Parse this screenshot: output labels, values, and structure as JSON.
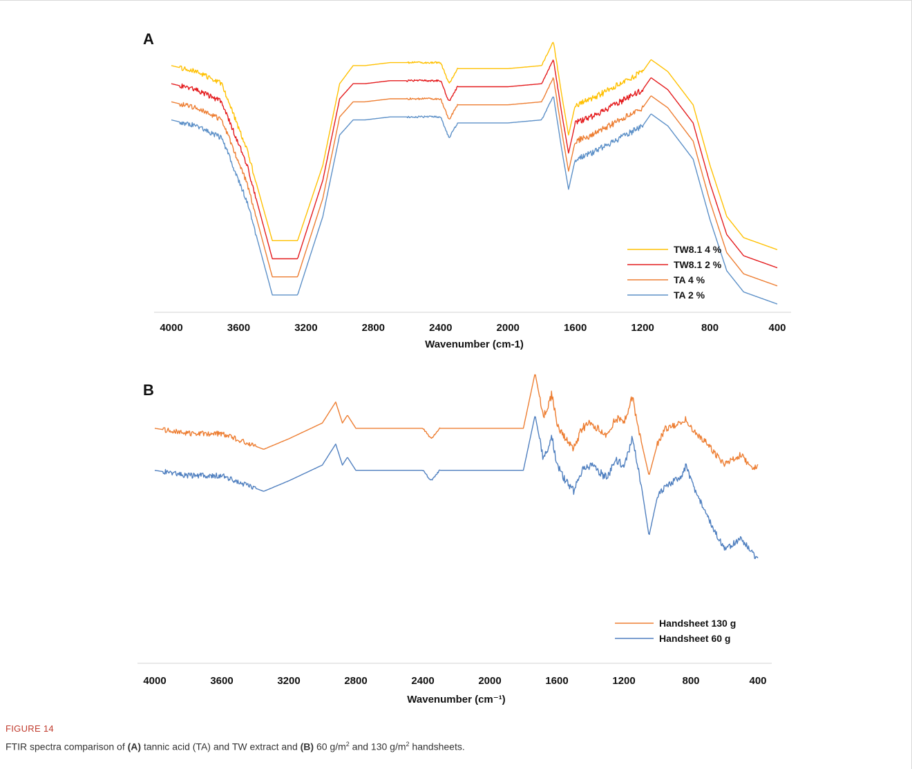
{
  "figure": {
    "label": "FIGURE 14",
    "caption_parts": [
      {
        "t": "FTIR spectra comparison of ",
        "b": false
      },
      {
        "t": "(A)",
        "b": true
      },
      {
        "t": " tannic acid (TA) and TW extract and ",
        "b": false
      },
      {
        "t": "(B)",
        "b": true
      },
      {
        "t": " 60 g/m",
        "b": false
      },
      {
        "t": "2",
        "b": false,
        "sup": true
      },
      {
        "t": " and 130 g/m",
        "b": false
      },
      {
        "t": "2",
        "b": false,
        "sup": true
      },
      {
        "t": " handsheets.",
        "b": false
      }
    ]
  },
  "chart_data": [
    {
      "panel": "A",
      "type": "line",
      "xlabel": "Wavenumber (cm-1)",
      "ylabel": "",
      "xlim": [
        4000,
        400
      ],
      "x_reversed": true,
      "xticks": [
        4000,
        3600,
        3200,
        2800,
        2400,
        2000,
        1600,
        1200,
        800,
        400
      ],
      "legend_position": "bottom-right",
      "series": [
        {
          "name": "TW8.1 4 %",
          "color": "#ffc000",
          "points": [
            [
              4000,
              88
            ],
            [
              3850,
              86
            ],
            [
              3700,
              82
            ],
            [
              3550,
              60
            ],
            [
              3400,
              30
            ],
            [
              3250,
              30
            ],
            [
              3100,
              55
            ],
            [
              3000,
              82
            ],
            [
              2920,
              88
            ],
            [
              2850,
              88
            ],
            [
              2700,
              89
            ],
            [
              2400,
              89
            ],
            [
              2350,
              82
            ],
            [
              2300,
              87
            ],
            [
              2000,
              87
            ],
            [
              1800,
              88
            ],
            [
              1730,
              96
            ],
            [
              1680,
              78
            ],
            [
              1640,
              65
            ],
            [
              1600,
              75
            ],
            [
              1500,
              77
            ],
            [
              1400,
              80
            ],
            [
              1300,
              83
            ],
            [
              1200,
              86
            ],
            [
              1150,
              90
            ],
            [
              1050,
              86
            ],
            [
              900,
              75
            ],
            [
              800,
              55
            ],
            [
              700,
              38
            ],
            [
              600,
              31
            ],
            [
              500,
              29
            ],
            [
              400,
              27
            ]
          ]
        },
        {
          "name": "TW8.1 2 %",
          "color": "#e41a1c",
          "points": [
            [
              4000,
              82
            ],
            [
              3850,
              80
            ],
            [
              3700,
              76
            ],
            [
              3550,
              55
            ],
            [
              3400,
              24
            ],
            [
              3250,
              24
            ],
            [
              3100,
              50
            ],
            [
              3000,
              77
            ],
            [
              2920,
              82
            ],
            [
              2850,
              82
            ],
            [
              2700,
              83
            ],
            [
              2400,
              83
            ],
            [
              2350,
              76
            ],
            [
              2300,
              81
            ],
            [
              2000,
              81
            ],
            [
              1800,
              82
            ],
            [
              1730,
              90
            ],
            [
              1680,
              72
            ],
            [
              1640,
              59
            ],
            [
              1600,
              69
            ],
            [
              1500,
              71
            ],
            [
              1400,
              74
            ],
            [
              1300,
              77
            ],
            [
              1200,
              80
            ],
            [
              1150,
              84
            ],
            [
              1050,
              80
            ],
            [
              900,
              69
            ],
            [
              800,
              49
            ],
            [
              700,
              32
            ],
            [
              600,
              25
            ],
            [
              500,
              23
            ],
            [
              400,
              21
            ]
          ]
        },
        {
          "name": "TA 4 %",
          "color": "#ed7d31",
          "points": [
            [
              4000,
              76
            ],
            [
              3850,
              74
            ],
            [
              3700,
              70
            ],
            [
              3550,
              49
            ],
            [
              3400,
              18
            ],
            [
              3250,
              18
            ],
            [
              3100,
              44
            ],
            [
              3000,
              71
            ],
            [
              2920,
              76
            ],
            [
              2850,
              76
            ],
            [
              2700,
              77
            ],
            [
              2400,
              77
            ],
            [
              2350,
              70
            ],
            [
              2300,
              75
            ],
            [
              2000,
              75
            ],
            [
              1800,
              76
            ],
            [
              1730,
              84
            ],
            [
              1680,
              66
            ],
            [
              1640,
              53
            ],
            [
              1600,
              63
            ],
            [
              1500,
              65
            ],
            [
              1400,
              68
            ],
            [
              1300,
              71
            ],
            [
              1200,
              74
            ],
            [
              1150,
              78
            ],
            [
              1050,
              74
            ],
            [
              900,
              63
            ],
            [
              800,
              43
            ],
            [
              700,
              26
            ],
            [
              600,
              19
            ],
            [
              500,
              17
            ],
            [
              400,
              15
            ]
          ]
        },
        {
          "name": "TA 2 %",
          "color": "#5b8fc7",
          "points": [
            [
              4000,
              70
            ],
            [
              3850,
              68
            ],
            [
              3700,
              64
            ],
            [
              3550,
              43
            ],
            [
              3400,
              12
            ],
            [
              3250,
              12
            ],
            [
              3100,
              38
            ],
            [
              3000,
              65
            ],
            [
              2920,
              70
            ],
            [
              2850,
              70
            ],
            [
              2700,
              71
            ],
            [
              2400,
              71
            ],
            [
              2350,
              64
            ],
            [
              2300,
              69
            ],
            [
              2000,
              69
            ],
            [
              1800,
              70
            ],
            [
              1730,
              78
            ],
            [
              1680,
              60
            ],
            [
              1640,
              47
            ],
            [
              1600,
              57
            ],
            [
              1500,
              59
            ],
            [
              1400,
              62
            ],
            [
              1300,
              65
            ],
            [
              1200,
              68
            ],
            [
              1150,
              72
            ],
            [
              1050,
              68
            ],
            [
              900,
              57
            ],
            [
              800,
              37
            ],
            [
              700,
              20
            ],
            [
              600,
              13
            ],
            [
              500,
              11
            ],
            [
              400,
              9
            ]
          ]
        }
      ]
    },
    {
      "panel": "B",
      "type": "line",
      "xlabel": "Wavenumber (cm⁻¹)",
      "ylabel": "",
      "xlim": [
        4000,
        400
      ],
      "x_reversed": true,
      "xticks": [
        4000,
        3600,
        3200,
        2800,
        2400,
        2000,
        1600,
        1200,
        800,
        400
      ],
      "legend_position": "bottom-right",
      "series": [
        {
          "name": "Handsheet 130 g",
          "color": "#ed7d31",
          "points": [
            [
              4000,
              86
            ],
            [
              3800,
              84
            ],
            [
              3600,
              84
            ],
            [
              3350,
              78
            ],
            [
              3200,
              82
            ],
            [
              3000,
              88
            ],
            [
              2920,
              96
            ],
            [
              2880,
              88
            ],
            [
              2850,
              91
            ],
            [
              2800,
              86
            ],
            [
              2400,
              86
            ],
            [
              2350,
              82
            ],
            [
              2300,
              86
            ],
            [
              1800,
              86
            ],
            [
              1730,
              107
            ],
            [
              1680,
              90
            ],
            [
              1630,
              99
            ],
            [
              1600,
              88
            ],
            [
              1550,
              82
            ],
            [
              1500,
              78
            ],
            [
              1450,
              86
            ],
            [
              1400,
              88
            ],
            [
              1300,
              83
            ],
            [
              1250,
              90
            ],
            [
              1200,
              88
            ],
            [
              1150,
              98
            ],
            [
              1100,
              82
            ],
            [
              1050,
              68
            ],
            [
              1000,
              80
            ],
            [
              950,
              86
            ],
            [
              850,
              88
            ],
            [
              830,
              90
            ],
            [
              800,
              86
            ],
            [
              700,
              80
            ],
            [
              600,
              72
            ],
            [
              500,
              76
            ],
            [
              430,
              70
            ],
            [
              400,
              72
            ]
          ]
        },
        {
          "name": "Handsheet 60 g",
          "color": "#4f7fbf",
          "points": [
            [
              4000,
              70
            ],
            [
              3800,
              68
            ],
            [
              3600,
              68
            ],
            [
              3350,
              62
            ],
            [
              3200,
              66
            ],
            [
              3000,
              72
            ],
            [
              2920,
              80
            ],
            [
              2880,
              72
            ],
            [
              2850,
              75
            ],
            [
              2800,
              70
            ],
            [
              2400,
              70
            ],
            [
              2350,
              66
            ],
            [
              2300,
              70
            ],
            [
              1800,
              70
            ],
            [
              1730,
              91
            ],
            [
              1680,
              74
            ],
            [
              1630,
              83
            ],
            [
              1600,
              72
            ],
            [
              1550,
              66
            ],
            [
              1500,
              62
            ],
            [
              1450,
              70
            ],
            [
              1400,
              72
            ],
            [
              1300,
              67
            ],
            [
              1250,
              74
            ],
            [
              1200,
              72
            ],
            [
              1150,
              82
            ],
            [
              1100,
              66
            ],
            [
              1050,
              45
            ],
            [
              1000,
              60
            ],
            [
              950,
              64
            ],
            [
              850,
              68
            ],
            [
              830,
              72
            ],
            [
              800,
              66
            ],
            [
              700,
              52
            ],
            [
              600,
              40
            ],
            [
              500,
              44
            ],
            [
              430,
              38
            ],
            [
              400,
              36
            ]
          ]
        }
      ]
    }
  ]
}
